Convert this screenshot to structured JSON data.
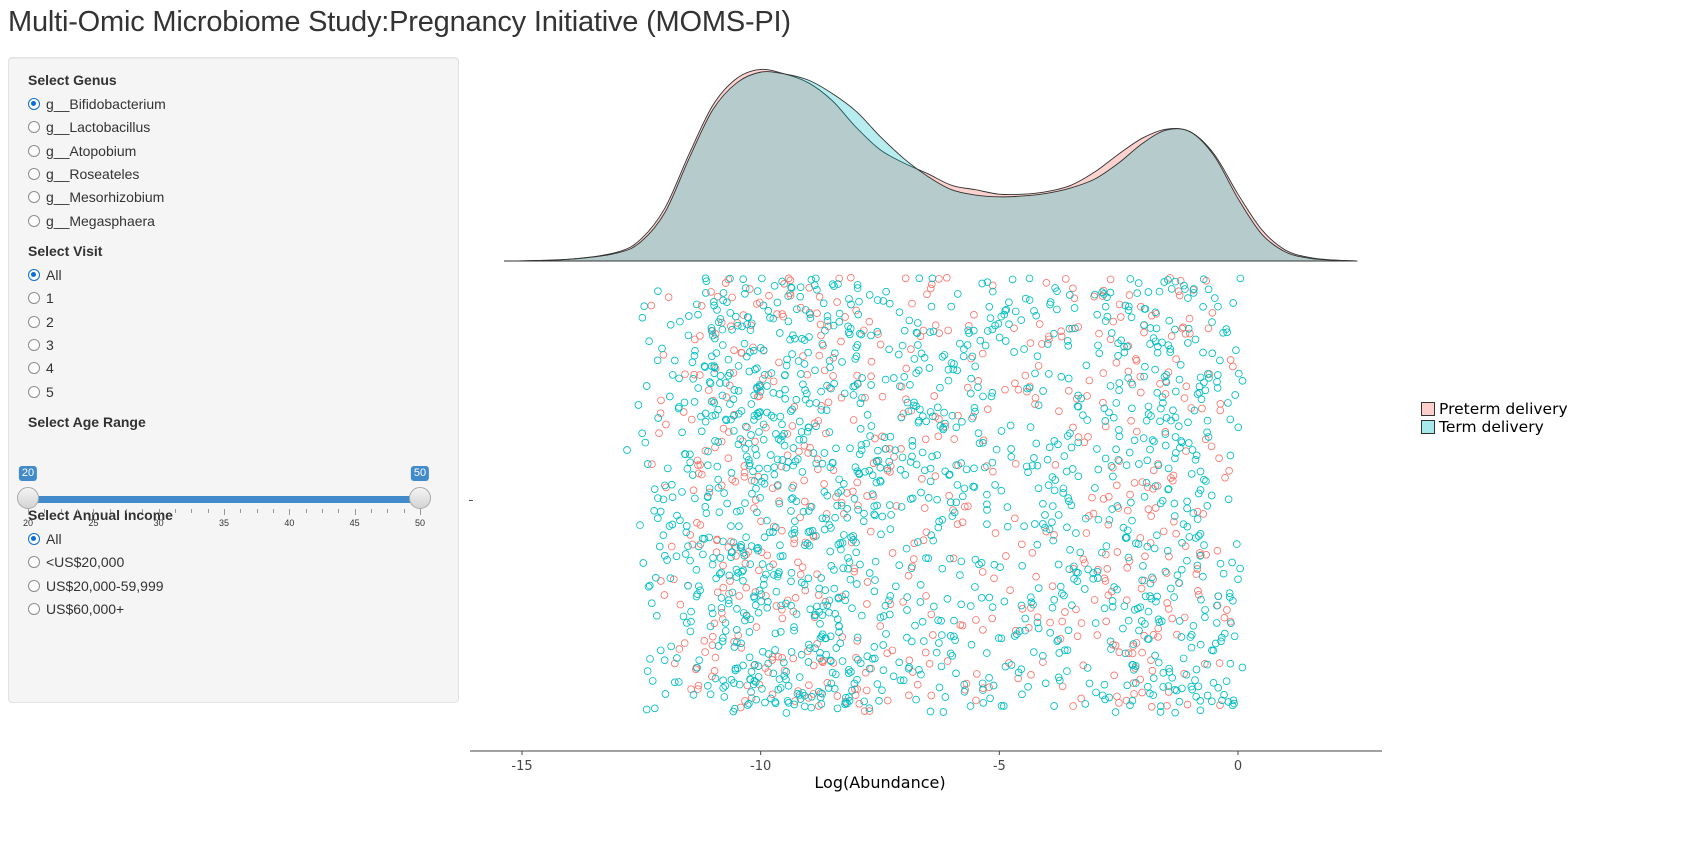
{
  "app": {
    "title": "Multi-Omic Microbiome Study:Pregnancy Initiative (MOMS-PI)"
  },
  "sidebar": {
    "genus": {
      "label": "Select Genus",
      "selected_index": 0,
      "options": [
        "g__Bifidobacterium",
        "g__Lactobacillus",
        "g__Atopobium",
        "g__Roseateles",
        "g__Mesorhizobium",
        "g__Megasphaera"
      ]
    },
    "visit": {
      "label": "Select Visit",
      "selected_index": 0,
      "options": [
        "All",
        "1",
        "2",
        "3",
        "4",
        "5"
      ]
    },
    "age": {
      "label": "Select Age Range",
      "min": 20,
      "max": 50,
      "from": 20,
      "to": 50,
      "from_label": "20",
      "to_label": "50",
      "ticks": [
        "20",
        "25",
        "30",
        "35",
        "40",
        "45",
        "50"
      ]
    },
    "income": {
      "label": "Select Annual Income",
      "selected_index": 0,
      "options": [
        "All",
        "<US$20,000",
        "US$20,000-59,999",
        "US$60,000+"
      ]
    }
  },
  "chart_data": {
    "type": "scatter",
    "title": "",
    "xlabel": "Log(Abundance)",
    "ylabel": "",
    "xlim": [
      -16,
      3.2
    ],
    "x_ticks": [
      -15,
      -10,
      -5,
      0
    ],
    "x_tick_labels": [
      "-15",
      "-10",
      "-5",
      "0"
    ],
    "y_axis": "jitter (no scale shown)",
    "grid": false,
    "legend_position": "right",
    "marker": "hollow-circle",
    "marginal_density": {
      "type": "area",
      "position": "top",
      "series": [
        {
          "name": "Preterm delivery",
          "color": "#f8766d",
          "x": [
            -15.2,
            -14,
            -13,
            -12.5,
            -12,
            -11.5,
            -11,
            -10.5,
            -10,
            -9.5,
            -9,
            -8.5,
            -8,
            -7.5,
            -7,
            -6.5,
            -6,
            -5.5,
            -5,
            -4.5,
            -4,
            -3.5,
            -3,
            -2.5,
            -2,
            -1.5,
            -1,
            -0.5,
            0,
            0.5,
            1,
            1.5,
            2,
            2.5
          ],
          "density": [
            0.0,
            0.002,
            0.01,
            0.025,
            0.06,
            0.12,
            0.175,
            0.205,
            0.215,
            0.21,
            0.2,
            0.18,
            0.15,
            0.125,
            0.11,
            0.098,
            0.085,
            0.08,
            0.075,
            0.075,
            0.078,
            0.085,
            0.1,
            0.12,
            0.138,
            0.148,
            0.145,
            0.12,
            0.075,
            0.035,
            0.012,
            0.004,
            0.001,
            0.0
          ]
        },
        {
          "name": "Term delivery",
          "color": "#00bfc4",
          "x": [
            -15.2,
            -14,
            -13,
            -12.5,
            -12,
            -11.5,
            -11,
            -10.5,
            -10,
            -9.5,
            -9,
            -8.5,
            -8,
            -7.5,
            -7,
            -6.5,
            -6,
            -5.5,
            -5,
            -4.5,
            -4,
            -3.5,
            -3,
            -2.5,
            -2,
            -1.5,
            -1,
            -0.5,
            0,
            0.5,
            1,
            1.5,
            2,
            2.5
          ],
          "density": [
            0.0,
            0.002,
            0.009,
            0.022,
            0.055,
            0.115,
            0.17,
            0.2,
            0.212,
            0.21,
            0.203,
            0.188,
            0.168,
            0.14,
            0.115,
            0.095,
            0.08,
            0.074,
            0.072,
            0.073,
            0.076,
            0.082,
            0.092,
            0.11,
            0.132,
            0.147,
            0.145,
            0.118,
            0.07,
            0.03,
            0.01,
            0.003,
            0.001,
            0.0
          ]
        }
      ]
    },
    "series": [
      {
        "name": "Preterm delivery",
        "color": "#f8766d",
        "approx_points": 620,
        "x_range": [
          -12.3,
          -0.1
        ]
      },
      {
        "name": "Term delivery",
        "color": "#00bfc4",
        "approx_points": 1450,
        "x_range": [
          -12.7,
          0.1
        ]
      }
    ]
  }
}
